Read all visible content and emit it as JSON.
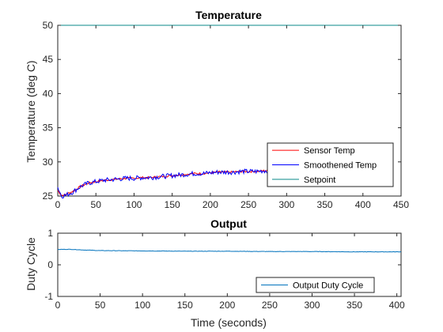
{
  "chart_data": [
    {
      "type": "line",
      "title": "Temperature",
      "xlabel": "",
      "ylabel": "Temperature (deg C)",
      "xlim": [
        0,
        450
      ],
      "ylim": [
        25,
        50
      ],
      "xticks": [
        0,
        50,
        100,
        150,
        200,
        250,
        300,
        350,
        400,
        450
      ],
      "yticks": [
        25,
        30,
        35,
        40,
        45,
        50
      ],
      "grid": false,
      "legend_placement": "bottom-right",
      "series": [
        {
          "name": "Sensor Temp",
          "color": "#ff0000",
          "x": [
            0,
            5,
            10,
            20,
            30,
            40,
            50,
            60,
            70,
            80,
            90,
            100,
            110,
            120,
            130,
            140,
            150,
            160,
            170,
            180,
            190,
            200,
            210,
            220,
            230,
            240,
            250,
            260,
            270,
            278
          ],
          "y": [
            25.8,
            25.1,
            25.2,
            25.7,
            26.4,
            26.9,
            27.1,
            27.3,
            27.4,
            27.5,
            27.6,
            27.6,
            27.7,
            27.7,
            27.8,
            27.9,
            28.0,
            28.1,
            28.2,
            28.3,
            28.3,
            28.4,
            28.5,
            28.5,
            28.5,
            28.6,
            28.6,
            28.6,
            28.7,
            28.7
          ],
          "noise": 0.15
        },
        {
          "name": "Smoothened Temp",
          "color": "#0000ff",
          "x": [
            0,
            5,
            10,
            20,
            30,
            40,
            50,
            60,
            70,
            80,
            90,
            100,
            110,
            120,
            130,
            140,
            150,
            160,
            170,
            180,
            190,
            200,
            210,
            220,
            230,
            240,
            250,
            260,
            270,
            278
          ],
          "y": [
            26.3,
            25.0,
            25.1,
            25.6,
            26.4,
            26.9,
            27.1,
            27.3,
            27.4,
            27.5,
            27.6,
            27.6,
            27.7,
            27.7,
            27.8,
            27.9,
            28.0,
            28.1,
            28.2,
            28.3,
            28.3,
            28.4,
            28.5,
            28.5,
            28.5,
            28.6,
            28.6,
            28.6,
            28.7,
            28.7
          ],
          "noise": 0.35
        },
        {
          "name": "Setpoint",
          "color": "#0a8a8a",
          "x": [
            0,
            450
          ],
          "y": [
            50,
            50
          ]
        }
      ]
    },
    {
      "type": "line",
      "title": "Output",
      "xlabel": "Time (seconds)",
      "ylabel": "Duty Cycle",
      "xlim": [
        0,
        405
      ],
      "ylim": [
        -1,
        1
      ],
      "xticks": [
        0,
        50,
        100,
        150,
        200,
        250,
        300,
        350,
        400
      ],
      "yticks": [
        -1,
        0,
        1
      ],
      "grid": false,
      "legend_placement": "bottom-right",
      "series": [
        {
          "name": "Output Duty Cycle",
          "color": "#0072bd",
          "x": [
            0,
            5,
            15,
            30,
            50,
            100,
            150,
            200,
            250,
            300,
            350,
            405
          ],
          "y": [
            0.48,
            0.49,
            0.49,
            0.47,
            0.45,
            0.44,
            0.43,
            0.43,
            0.42,
            0.42,
            0.41,
            0.41
          ],
          "noise": 0.006
        }
      ]
    }
  ]
}
